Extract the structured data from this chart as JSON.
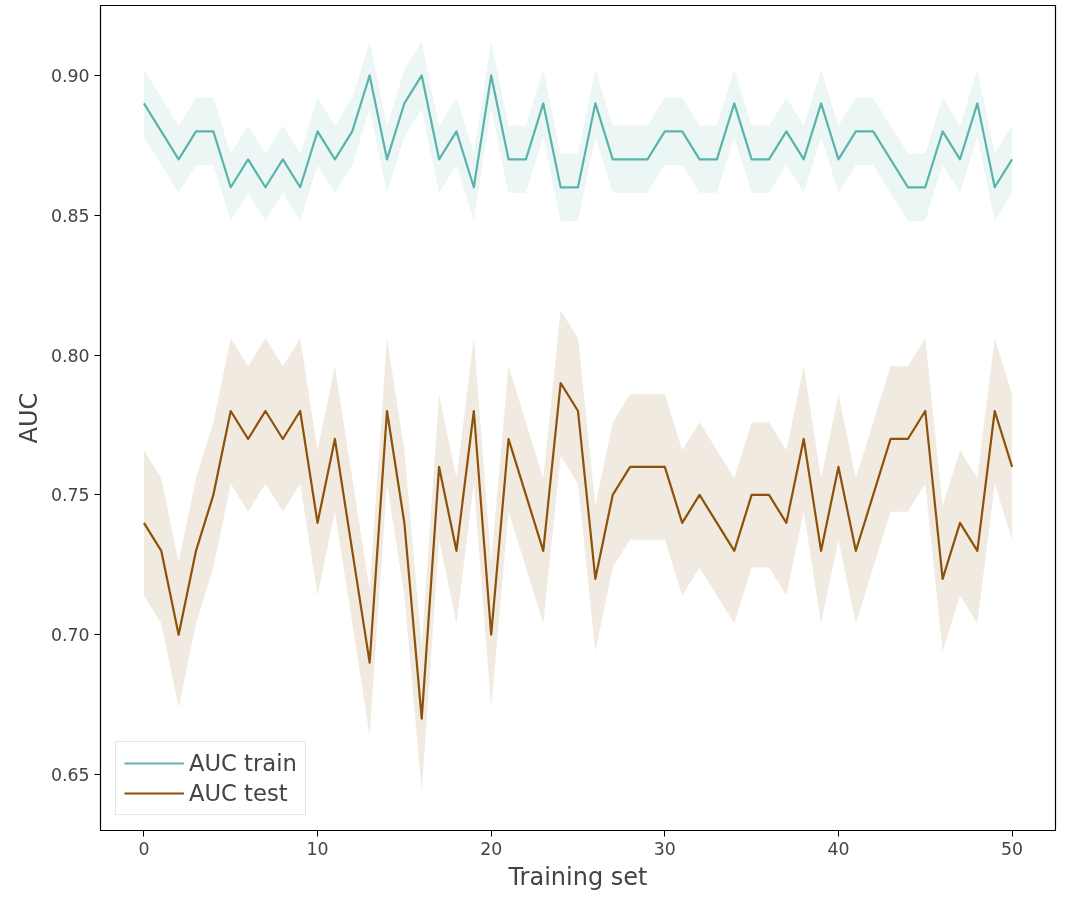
{
  "chart_data": {
    "type": "line",
    "xlabel": "Training set",
    "ylabel": "AUC",
    "x": [
      0,
      1,
      2,
      3,
      4,
      5,
      6,
      7,
      8,
      9,
      10,
      11,
      12,
      13,
      14,
      15,
      16,
      17,
      18,
      19,
      20,
      21,
      22,
      23,
      24,
      25,
      26,
      27,
      28,
      29,
      30,
      31,
      32,
      33,
      34,
      35,
      36,
      37,
      38,
      39,
      40,
      41,
      42,
      43,
      44,
      45,
      46,
      47,
      48,
      49,
      50
    ],
    "xlim": [
      -2.5,
      52.5
    ],
    "xticks": [
      0,
      10,
      20,
      30,
      40,
      50
    ],
    "ylim": [
      0.63,
      0.925
    ],
    "yticks": [
      {
        "value": 0.65,
        "label": "0.65"
      },
      {
        "value": 0.7,
        "label": "0.70"
      },
      {
        "value": 0.75,
        "label": "0.75"
      },
      {
        "value": 0.8,
        "label": "0.80"
      },
      {
        "value": 0.85,
        "label": "0.85"
      },
      {
        "value": 0.9,
        "label": "0.90"
      }
    ],
    "grid": false,
    "legend": "bottom left",
    "line_style": "solid",
    "marker": "none",
    "series": [
      {
        "name": "AUC train",
        "color": "#5ab4ac",
        "values": [
          0.89,
          0.88,
          0.87,
          0.88,
          0.88,
          0.86,
          0.87,
          0.86,
          0.87,
          0.86,
          0.88,
          0.87,
          0.88,
          0.9,
          0.87,
          0.89,
          0.9,
          0.87,
          0.88,
          0.86,
          0.9,
          0.87,
          0.87,
          0.89,
          0.86,
          0.86,
          0.89,
          0.87,
          0.87,
          0.87,
          0.88,
          0.88,
          0.87,
          0.87,
          0.89,
          0.87,
          0.87,
          0.88,
          0.87,
          0.89,
          0.87,
          0.88,
          0.88,
          0.87,
          0.86,
          0.86,
          0.88,
          0.87,
          0.89,
          0.86,
          0.87
        ],
        "upper": [
          0.902,
          0.892,
          0.882,
          0.892,
          0.892,
          0.872,
          0.882,
          0.872,
          0.882,
          0.872,
          0.892,
          0.882,
          0.892,
          0.912,
          0.882,
          0.902,
          0.912,
          0.882,
          0.892,
          0.872,
          0.912,
          0.882,
          0.882,
          0.902,
          0.872,
          0.872,
          0.902,
          0.882,
          0.882,
          0.882,
          0.892,
          0.892,
          0.882,
          0.882,
          0.902,
          0.882,
          0.882,
          0.892,
          0.882,
          0.902,
          0.882,
          0.892,
          0.892,
          0.882,
          0.872,
          0.872,
          0.892,
          0.882,
          0.902,
          0.872,
          0.882
        ],
        "lower": [
          0.878,
          0.868,
          0.858,
          0.868,
          0.868,
          0.848,
          0.858,
          0.848,
          0.858,
          0.848,
          0.868,
          0.858,
          0.868,
          0.888,
          0.858,
          0.878,
          0.888,
          0.858,
          0.868,
          0.848,
          0.888,
          0.858,
          0.858,
          0.878,
          0.848,
          0.848,
          0.878,
          0.858,
          0.858,
          0.858,
          0.868,
          0.868,
          0.858,
          0.858,
          0.878,
          0.858,
          0.858,
          0.868,
          0.858,
          0.878,
          0.858,
          0.868,
          0.868,
          0.858,
          0.848,
          0.848,
          0.868,
          0.858,
          0.878,
          0.848,
          0.858
        ]
      },
      {
        "name": "AUC test",
        "color": "#8c510a",
        "values": [
          0.74,
          0.73,
          0.7,
          0.73,
          0.75,
          0.78,
          0.77,
          0.78,
          0.77,
          0.78,
          0.74,
          0.77,
          0.73,
          0.69,
          0.78,
          0.74,
          0.67,
          0.76,
          0.73,
          0.78,
          0.7,
          0.77,
          0.75,
          0.73,
          0.79,
          0.78,
          0.72,
          0.75,
          0.76,
          0.76,
          0.76,
          0.74,
          0.75,
          0.74,
          0.73,
          0.75,
          0.75,
          0.74,
          0.77,
          0.73,
          0.76,
          0.73,
          0.75,
          0.77,
          0.77,
          0.78,
          0.72,
          0.74,
          0.73,
          0.78,
          0.76
        ],
        "upper": [
          0.766,
          0.756,
          0.726,
          0.756,
          0.776,
          0.806,
          0.796,
          0.806,
          0.796,
          0.806,
          0.766,
          0.796,
          0.756,
          0.716,
          0.806,
          0.766,
          0.696,
          0.786,
          0.756,
          0.806,
          0.726,
          0.796,
          0.776,
          0.756,
          0.816,
          0.806,
          0.746,
          0.776,
          0.786,
          0.786,
          0.786,
          0.766,
          0.776,
          0.766,
          0.756,
          0.776,
          0.776,
          0.766,
          0.796,
          0.756,
          0.786,
          0.756,
          0.776,
          0.796,
          0.796,
          0.806,
          0.746,
          0.766,
          0.756,
          0.806,
          0.786
        ],
        "lower": [
          0.714,
          0.704,
          0.674,
          0.704,
          0.724,
          0.754,
          0.744,
          0.754,
          0.744,
          0.754,
          0.714,
          0.744,
          0.704,
          0.664,
          0.754,
          0.714,
          0.644,
          0.734,
          0.704,
          0.754,
          0.674,
          0.744,
          0.724,
          0.704,
          0.764,
          0.754,
          0.694,
          0.724,
          0.734,
          0.734,
          0.734,
          0.714,
          0.724,
          0.714,
          0.704,
          0.724,
          0.724,
          0.714,
          0.744,
          0.704,
          0.734,
          0.704,
          0.724,
          0.744,
          0.744,
          0.754,
          0.694,
          0.714,
          0.704,
          0.754,
          0.734
        ]
      }
    ]
  }
}
